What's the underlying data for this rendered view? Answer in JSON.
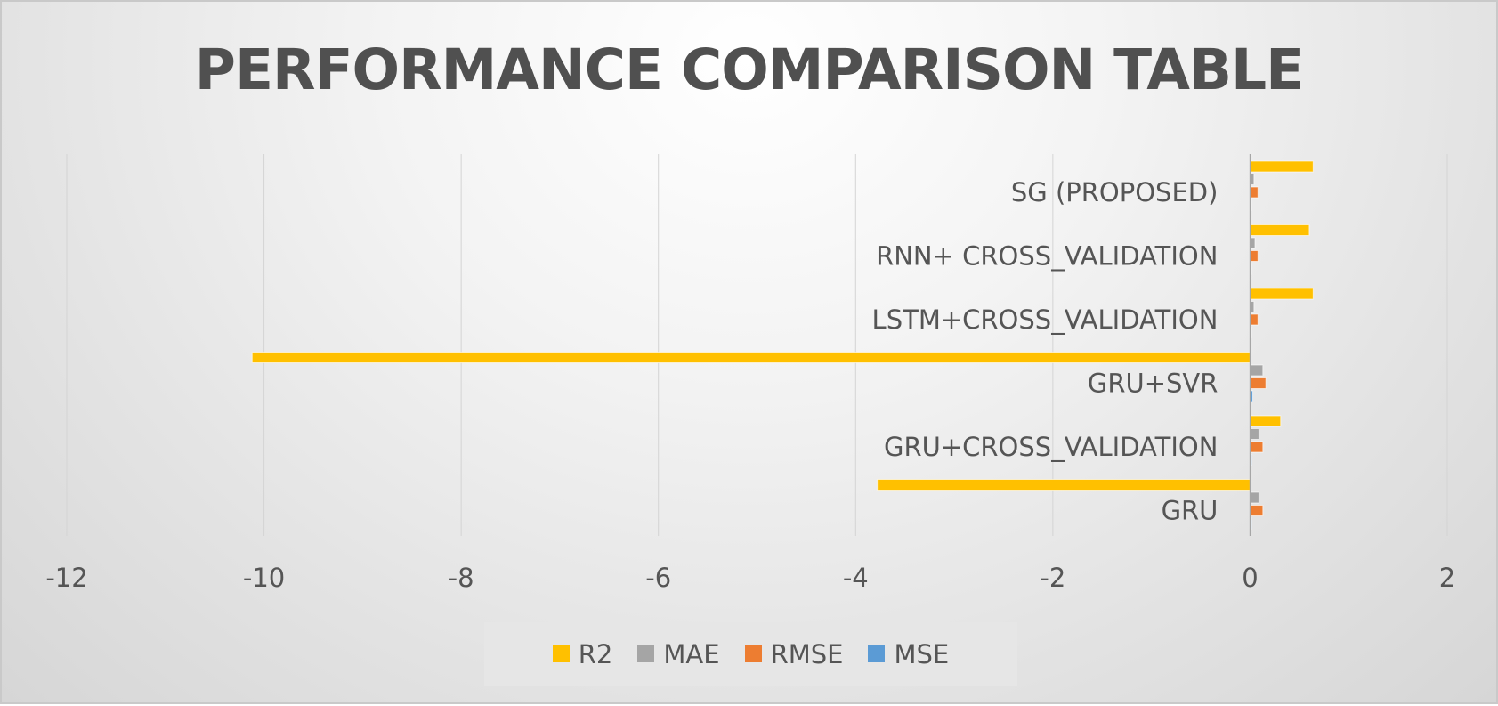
{
  "chart_data": {
    "type": "bar",
    "orientation": "horizontal",
    "title": "PERFORMANCE COMPARISON TABLE",
    "categories": [
      "GRU",
      "GRU+CROSS_VALIDATION",
      "GRU+SVR",
      "LSTM+CROSS_VALIDATION",
      "RNN+ CROSS_VALIDATION",
      "SG (PROPOSED)"
    ],
    "series": [
      {
        "name": "R2",
        "color": "#ffc000",
        "values": [
          -3.78,
          0.31,
          -10.12,
          0.64,
          0.6,
          0.64
        ]
      },
      {
        "name": "MAE",
        "color": "#a5a5a5",
        "values": [
          0.09,
          0.09,
          0.13,
          0.04,
          0.05,
          0.04
        ]
      },
      {
        "name": "RMSE",
        "color": "#ed7d31",
        "values": [
          0.13,
          0.13,
          0.16,
          0.08,
          0.08,
          0.08
        ]
      },
      {
        "name": "MSE",
        "color": "#5b9bd5",
        "values": [
          0.016,
          0.017,
          0.027,
          0.006,
          0.007,
          0.006
        ]
      }
    ],
    "xlim": [
      -12,
      2
    ],
    "xticks": [
      "-12",
      "-10",
      "-8",
      "-6",
      "-4",
      "-2",
      "0",
      "2"
    ],
    "grid": true,
    "legend_position": "bottom"
  }
}
